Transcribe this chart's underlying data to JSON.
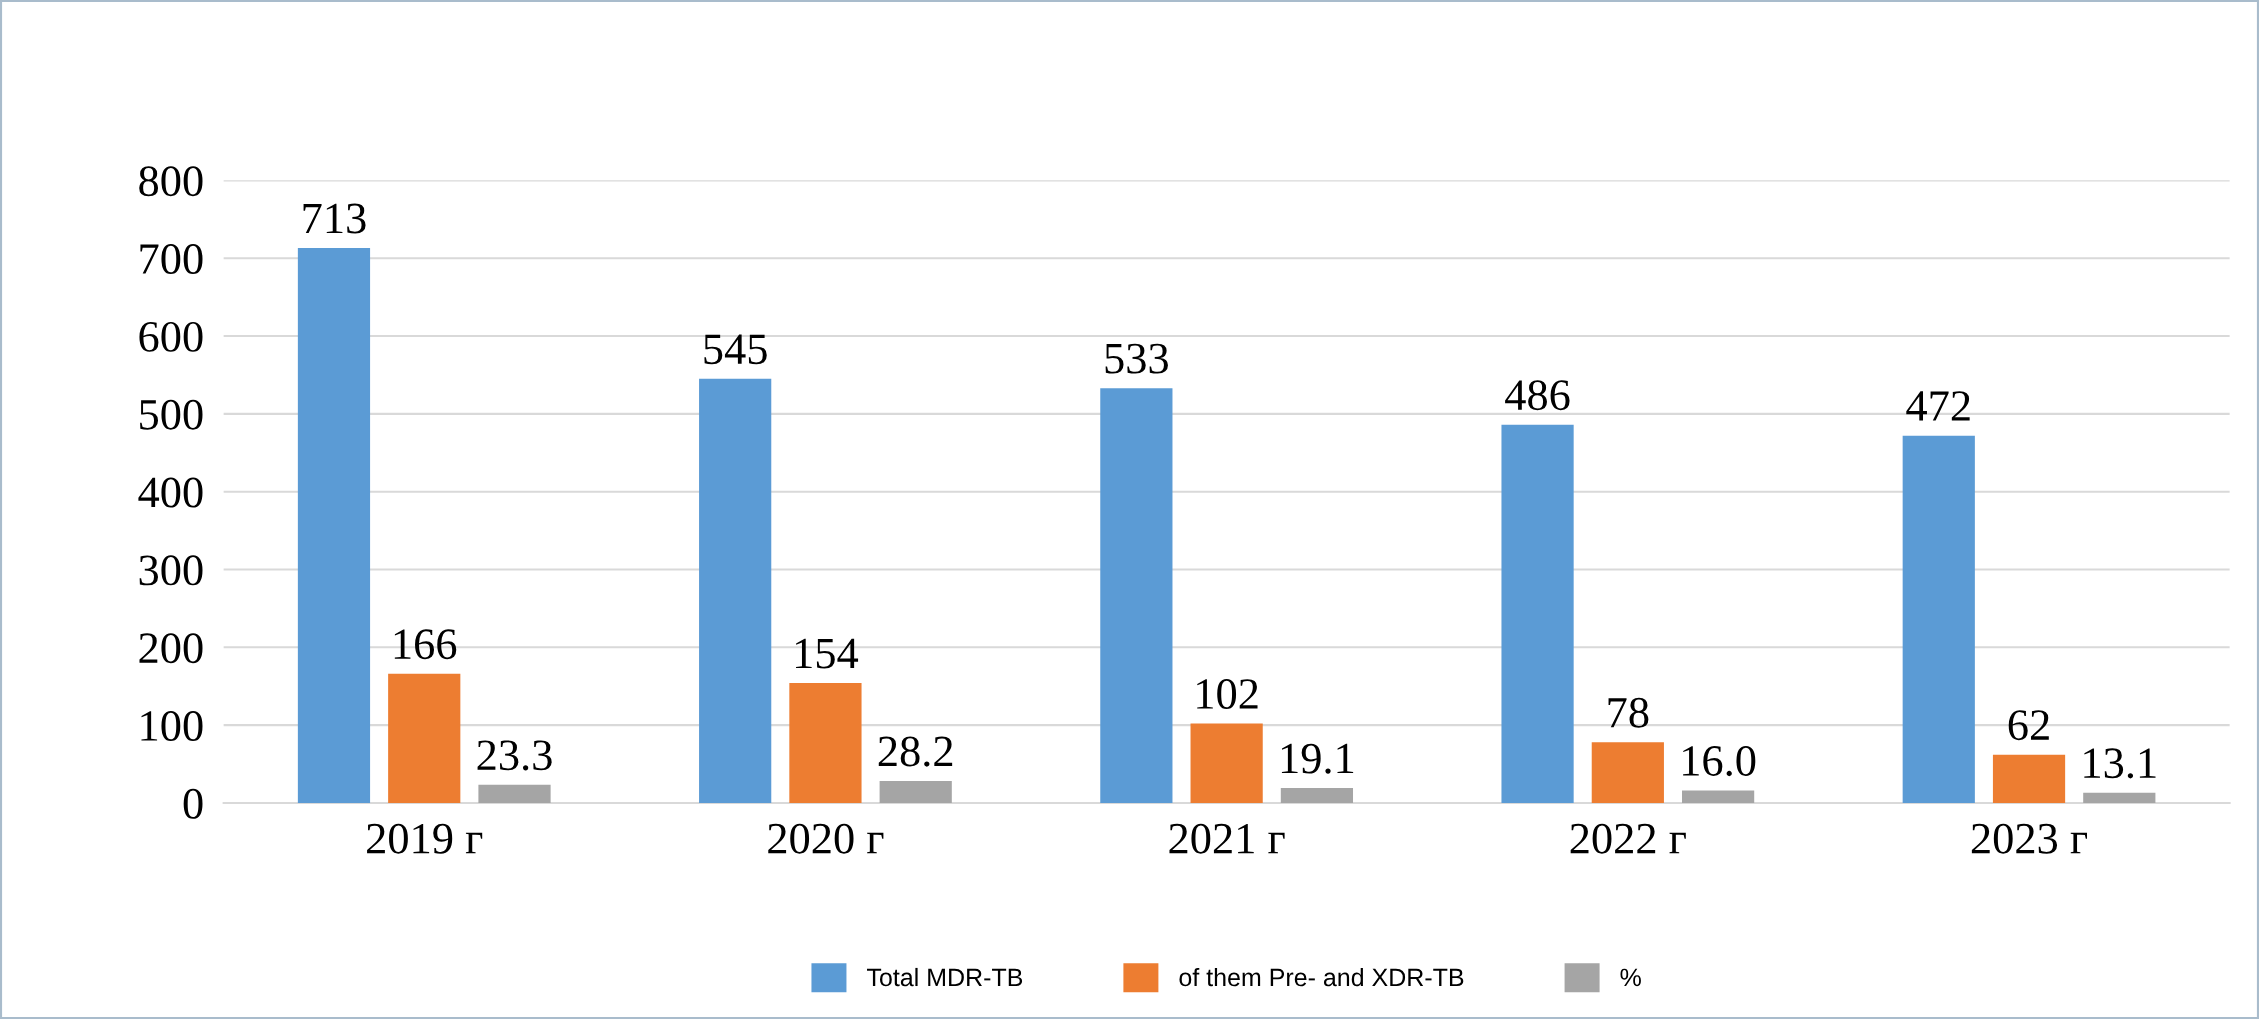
{
  "chart_data": {
    "type": "bar",
    "categories": [
      "2019 г",
      "2020 г",
      "2021 г",
      "2022 г",
      "2023 г"
    ],
    "series": [
      {
        "name": "Total MDR-TB",
        "color": "#5b9bd5",
        "values": [
          713,
          545,
          533,
          486,
          472
        ]
      },
      {
        "name": "of them Pre- and XDR-TB",
        "color": "#ed7d31",
        "values": [
          166,
          154,
          102,
          78,
          62
        ]
      },
      {
        "name": "%",
        "color": "#a5a5a5",
        "values": [
          23.3,
          28.2,
          19.1,
          16.0,
          13.1
        ],
        "value_labels": [
          "23.3",
          "28.2",
          "19.1",
          "16.0",
          "13.1"
        ]
      }
    ],
    "ylim": [
      0,
      800
    ],
    "yticks": [
      0,
      100,
      200,
      300,
      400,
      500,
      600,
      700,
      800
    ],
    "grid": "y",
    "legend": "bottom",
    "data_labels": true
  }
}
